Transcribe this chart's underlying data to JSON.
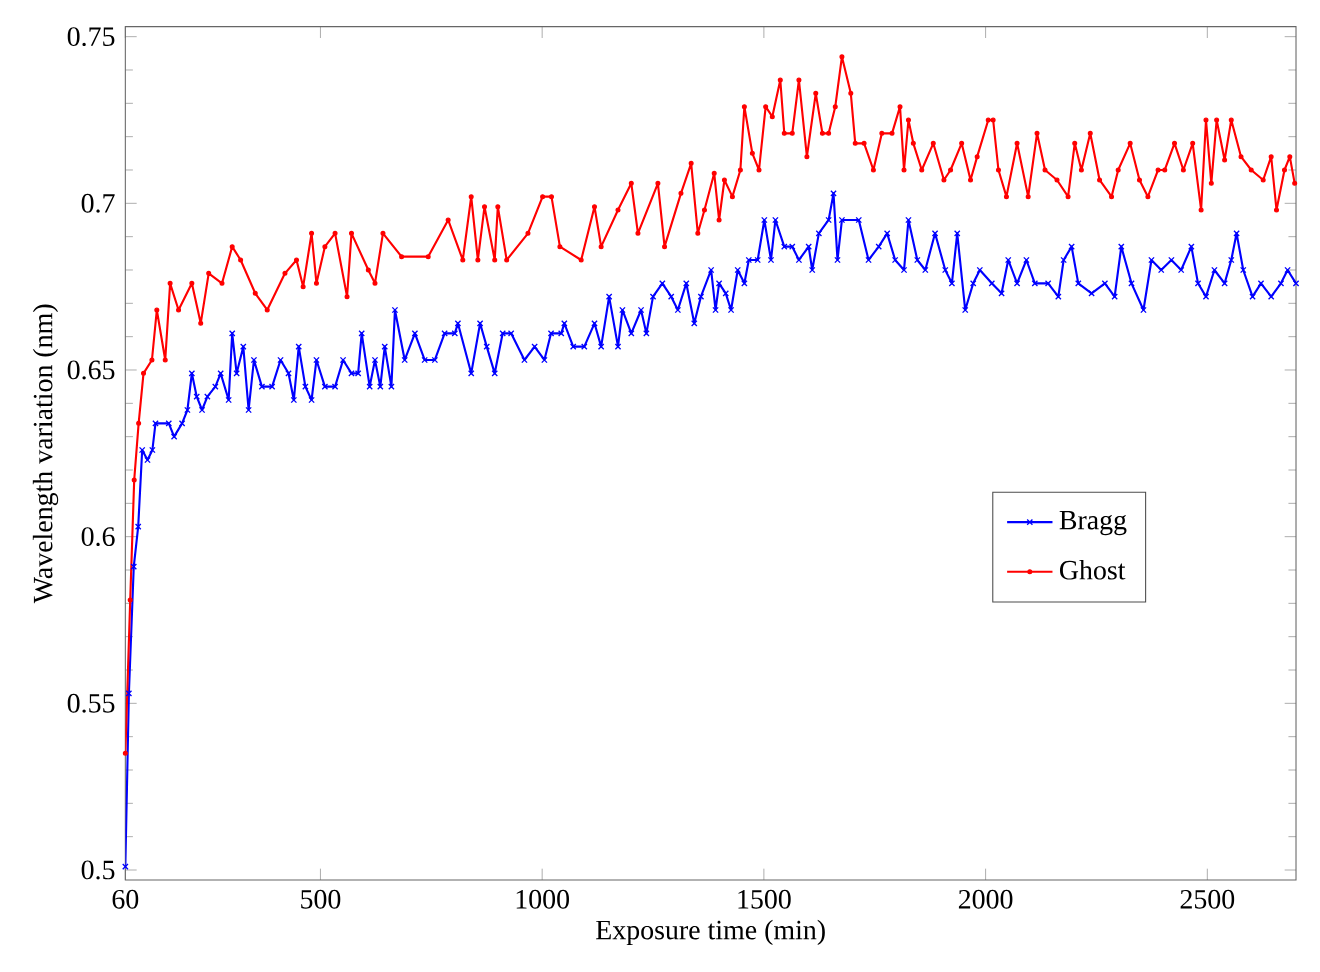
{
  "chart_data": {
    "type": "line",
    "xlabel": "Exposure time (min)",
    "ylabel": "Wavelength variation (nm)",
    "xlim": [
      60,
      2700
    ],
    "ylim": [
      0.497,
      0.753
    ],
    "xticks": [
      60,
      500,
      1000,
      1500,
      2000,
      2500
    ],
    "yticks": [
      0.5,
      0.55,
      0.6,
      0.65,
      0.7,
      0.75
    ],
    "grid": false,
    "legend": "right",
    "line_style": "solid",
    "series": [
      {
        "name": "Bragg",
        "color": "#0000ff",
        "marker": "cross",
        "x": [
          60,
          68,
          79,
          89,
          98,
          110,
          121,
          128,
          158,
          170,
          188,
          200,
          210,
          221,
          233,
          245,
          263,
          275,
          293,
          301,
          311,
          326,
          338,
          350,
          368,
          391,
          410,
          428,
          440,
          451,
          466,
          480,
          491,
          510,
          533,
          551,
          570,
          585,
          593,
          611,
          623,
          635,
          645,
          660,
          668,
          690,
          713,
          735,
          758,
          780,
          803,
          810,
          840,
          860,
          875,
          893,
          911,
          930,
          960,
          983,
          1005,
          1020,
          1043,
          1050,
          1070,
          1095,
          1118,
          1133,
          1151,
          1171,
          1181,
          1201,
          1223,
          1235,
          1250,
          1271,
          1291,
          1306,
          1325,
          1343,
          1358,
          1381,
          1391,
          1399,
          1414,
          1426,
          1441,
          1456,
          1466,
          1486,
          1501,
          1516,
          1526,
          1546,
          1564,
          1579,
          1601,
          1609,
          1624,
          1646,
          1657,
          1666,
          1676,
          1714,
          1736,
          1759,
          1778,
          1796,
          1816,
          1826,
          1846,
          1864,
          1886,
          1909,
          1924,
          1936,
          1954,
          1972,
          1987,
          2014,
          2036,
          2051,
          2071,
          2092,
          2111,
          2141,
          2164,
          2176,
          2194,
          2209,
          2239,
          2269,
          2291,
          2306,
          2329,
          2356,
          2374,
          2396,
          2419,
          2441,
          2464,
          2479,
          2497,
          2516,
          2539,
          2554,
          2566,
          2581,
          2602,
          2621,
          2644,
          2666,
          2681,
          2700
        ],
        "values": [
          0.501,
          0.553,
          0.591,
          0.603,
          0.626,
          0.623,
          0.626,
          0.634,
          0.634,
          0.63,
          0.634,
          0.638,
          0.649,
          0.642,
          0.638,
          0.642,
          0.645,
          0.649,
          0.641,
          0.661,
          0.649,
          0.657,
          0.638,
          0.653,
          0.645,
          0.645,
          0.653,
          0.649,
          0.641,
          0.657,
          0.645,
          0.641,
          0.653,
          0.645,
          0.645,
          0.653,
          0.649,
          0.649,
          0.661,
          0.645,
          0.653,
          0.645,
          0.657,
          0.645,
          0.668,
          0.653,
          0.661,
          0.653,
          0.653,
          0.661,
          0.661,
          0.664,
          0.649,
          0.664,
          0.657,
          0.649,
          0.661,
          0.661,
          0.653,
          0.657,
          0.653,
          0.661,
          0.661,
          0.664,
          0.657,
          0.657,
          0.664,
          0.657,
          0.672,
          0.657,
          0.668,
          0.661,
          0.668,
          0.661,
          0.672,
          0.676,
          0.672,
          0.668,
          0.676,
          0.664,
          0.672,
          0.68,
          0.668,
          0.676,
          0.673,
          0.668,
          0.68,
          0.676,
          0.683,
          0.683,
          0.695,
          0.683,
          0.695,
          0.687,
          0.687,
          0.683,
          0.687,
          0.68,
          0.691,
          0.695,
          0.703,
          0.683,
          0.695,
          0.695,
          0.683,
          0.687,
          0.691,
          0.683,
          0.68,
          0.695,
          0.683,
          0.68,
          0.691,
          0.68,
          0.676,
          0.691,
          0.668,
          0.676,
          0.68,
          0.676,
          0.673,
          0.683,
          0.676,
          0.683,
          0.676,
          0.676,
          0.672,
          0.683,
          0.687,
          0.676,
          0.673,
          0.676,
          0.672,
          0.687,
          0.676,
          0.668,
          0.683,
          0.68,
          0.683,
          0.68,
          0.687,
          0.676,
          0.672,
          0.68,
          0.676,
          0.683,
          0.691,
          0.68,
          0.672,
          0.676,
          0.672,
          0.676,
          0.68,
          0.676
        ]
      },
      {
        "name": "Ghost",
        "color": "#ff0000",
        "marker": "circle",
        "x": [
          60,
          71,
          80,
          90,
          101,
          120,
          131,
          150,
          161,
          180,
          210,
          230,
          248,
          278,
          301,
          320,
          353,
          380,
          420,
          446,
          461,
          480,
          491,
          510,
          533,
          560,
          570,
          608,
          623,
          641,
          683,
          743,
          788,
          821,
          840,
          855,
          870,
          893,
          900,
          920,
          968,
          1001,
          1021,
          1040,
          1088,
          1118,
          1133,
          1171,
          1201,
          1216,
          1261,
          1276,
          1313,
          1336,
          1351,
          1366,
          1388,
          1399,
          1411,
          1429,
          1447,
          1456,
          1474,
          1489,
          1504,
          1519,
          1537,
          1546,
          1564,
          1579,
          1597,
          1617,
          1632,
          1646,
          1661,
          1676,
          1696,
          1706,
          1726,
          1747,
          1766,
          1789,
          1807,
          1816,
          1826,
          1837,
          1856,
          1882,
          1906,
          1921,
          1946,
          1966,
          1981,
          2006,
          2017,
          2029,
          2047,
          2071,
          2096,
          2116,
          2134,
          2161,
          2186,
          2201,
          2216,
          2236,
          2257,
          2284,
          2299,
          2326,
          2347,
          2366,
          2389,
          2404,
          2426,
          2446,
          2467,
          2486,
          2497,
          2509,
          2521,
          2539,
          2554,
          2576,
          2599,
          2626,
          2644,
          2656,
          2674,
          2686,
          2697
        ],
        "values": [
          0.535,
          0.581,
          0.617,
          0.634,
          0.649,
          0.653,
          0.668,
          0.653,
          0.676,
          0.668,
          0.676,
          0.664,
          0.679,
          0.676,
          0.687,
          0.683,
          0.673,
          0.668,
          0.679,
          0.683,
          0.675,
          0.691,
          0.676,
          0.687,
          0.691,
          0.672,
          0.691,
          0.68,
          0.676,
          0.691,
          0.684,
          0.684,
          0.695,
          0.683,
          0.702,
          0.683,
          0.699,
          0.683,
          0.699,
          0.683,
          0.691,
          0.702,
          0.702,
          0.687,
          0.683,
          0.699,
          0.687,
          0.698,
          0.706,
          0.691,
          0.706,
          0.687,
          0.703,
          0.712,
          0.691,
          0.698,
          0.709,
          0.695,
          0.707,
          0.702,
          0.71,
          0.729,
          0.715,
          0.71,
          0.729,
          0.726,
          0.737,
          0.721,
          0.721,
          0.737,
          0.714,
          0.733,
          0.721,
          0.721,
          0.729,
          0.744,
          0.733,
          0.718,
          0.718,
          0.71,
          0.721,
          0.721,
          0.729,
          0.71,
          0.725,
          0.718,
          0.71,
          0.718,
          0.707,
          0.71,
          0.718,
          0.707,
          0.714,
          0.725,
          0.725,
          0.71,
          0.702,
          0.718,
          0.702,
          0.721,
          0.71,
          0.707,
          0.702,
          0.718,
          0.71,
          0.721,
          0.707,
          0.702,
          0.71,
          0.718,
          0.707,
          0.702,
          0.71,
          0.71,
          0.718,
          0.71,
          0.718,
          0.698,
          0.725,
          0.706,
          0.725,
          0.713,
          0.725,
          0.714,
          0.71,
          0.707,
          0.714,
          0.698,
          0.71,
          0.714,
          0.706
        ]
      }
    ]
  }
}
